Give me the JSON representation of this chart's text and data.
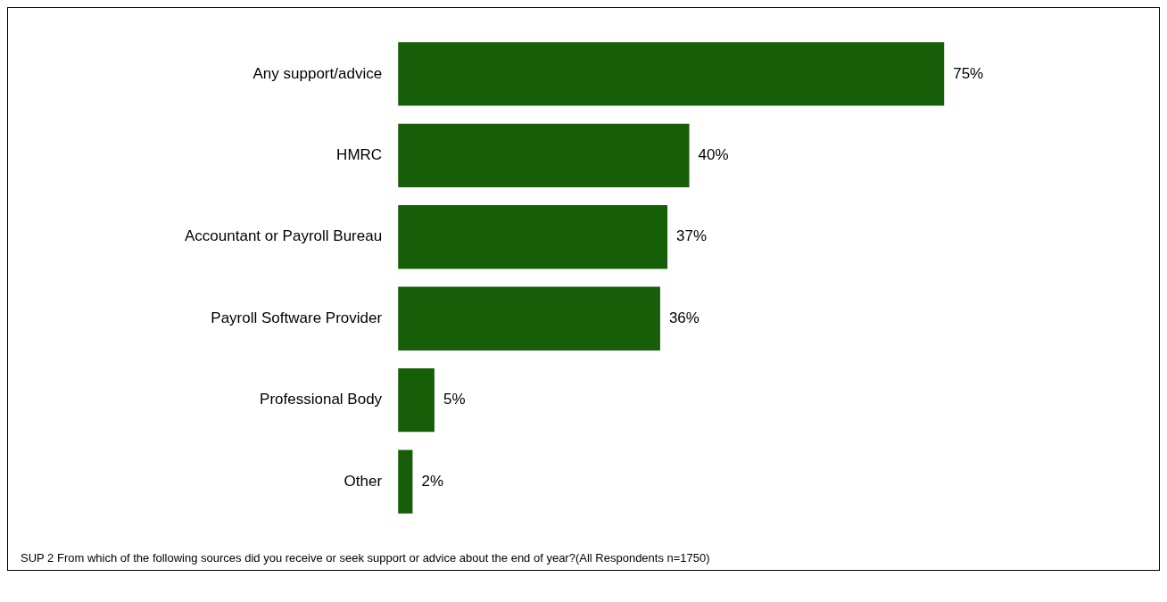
{
  "chart_data": {
    "type": "bar",
    "orientation": "horizontal",
    "categories": [
      "Any support/advice",
      "HMRC",
      "Accountant or Payroll Bureau",
      "Payroll Software Provider",
      "Professional Body",
      "Other"
    ],
    "values": [
      75,
      40,
      37,
      36,
      5,
      2
    ],
    "value_labels": [
      "75%",
      "40%",
      "37%",
      "36%",
      "5%",
      "2%"
    ],
    "color": "#165e07",
    "legend": false,
    "annotations": [
      "SUP 2 From which of the following sources did you receive or seek support or advice about the end of year?(All Respondents n=1750)"
    ]
  }
}
